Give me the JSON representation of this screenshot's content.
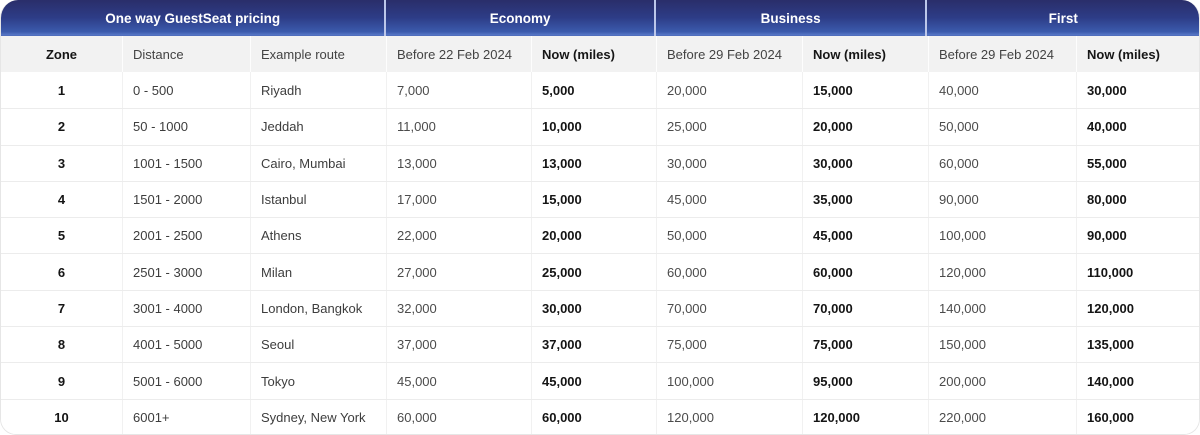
{
  "chart_data": {
    "type": "table",
    "title": "One way GuestSeat pricing",
    "groups": [
      {
        "key": "pricing",
        "label": "One way GuestSeat pricing",
        "col_span": 3
      },
      {
        "key": "economy",
        "label": "Economy",
        "col_span": 2
      },
      {
        "key": "business",
        "label": "Business",
        "col_span": 2
      },
      {
        "key": "first",
        "label": "First",
        "col_span": 2
      }
    ],
    "columns": [
      "Zone",
      "Distance",
      "Example route",
      "Before 22 Feb 2024",
      "Now (miles)",
      "Before 29 Feb 2024",
      "Now (miles)",
      "Before 29 Feb 2024",
      "Now (miles)"
    ],
    "column_keys": [
      "zone",
      "distance",
      "example-route",
      "economy-before",
      "economy-now",
      "business-before",
      "business-now",
      "first-before",
      "first-now"
    ],
    "rows": [
      [
        "1",
        "0 - 500",
        "Riyadh",
        "7,000",
        "5,000",
        "20,000",
        "15,000",
        "40,000",
        "30,000"
      ],
      [
        "2",
        "50 - 1000",
        "Jeddah",
        "11,000",
        "10,000",
        "25,000",
        "20,000",
        "50,000",
        "40,000"
      ],
      [
        "3",
        "1001 - 1500",
        "Cairo, Mumbai",
        "13,000",
        "13,000",
        "30,000",
        "30,000",
        "60,000",
        "55,000"
      ],
      [
        "4",
        "1501 - 2000",
        "Istanbul",
        "17,000",
        "15,000",
        "45,000",
        "35,000",
        "90,000",
        "80,000"
      ],
      [
        "5",
        "2001 - 2500",
        "Athens",
        "22,000",
        "20,000",
        "50,000",
        "45,000",
        "100,000",
        "90,000"
      ],
      [
        "6",
        "2501 - 3000",
        "Milan",
        "27,000",
        "25,000",
        "60,000",
        "60,000",
        "120,000",
        "110,000"
      ],
      [
        "7",
        "3001 - 4000",
        "London, Bangkok",
        "32,000",
        "30,000",
        "70,000",
        "70,000",
        "140,000",
        "120,000"
      ],
      [
        "8",
        "4001 - 5000",
        "Seoul",
        "37,000",
        "37,000",
        "75,000",
        "75,000",
        "150,000",
        "135,000"
      ],
      [
        "9",
        "5001 - 6000",
        "Tokyo",
        "45,000",
        "45,000",
        "100,000",
        "95,000",
        "200,000",
        "140,000"
      ],
      [
        "10",
        "6001+",
        "Sydney, New York",
        "60,000",
        "60,000",
        "120,000",
        "120,000",
        "220,000",
        "160,000"
      ]
    ],
    "layout": {
      "legend": "none",
      "grid": "row-and-column-separators",
      "bold_columns": [
        0,
        4,
        6,
        8
      ],
      "centered_columns": [
        0
      ]
    }
  },
  "colors": {
    "header_gradient_top": "#2a2e6a",
    "header_gradient_mid": "#2d3c86",
    "header_gradient_bottom": "#3b5aac",
    "header_bottom_highlight": "#5676c5",
    "header_text": "#ffffff",
    "group_separator": "#bcc7ea",
    "subheader_bg": "#f2f2f2",
    "row_bg": "#ffffff",
    "row_separator": "#ececec",
    "regular_text": "#4b4b4b",
    "bold_text": "#141414"
  }
}
